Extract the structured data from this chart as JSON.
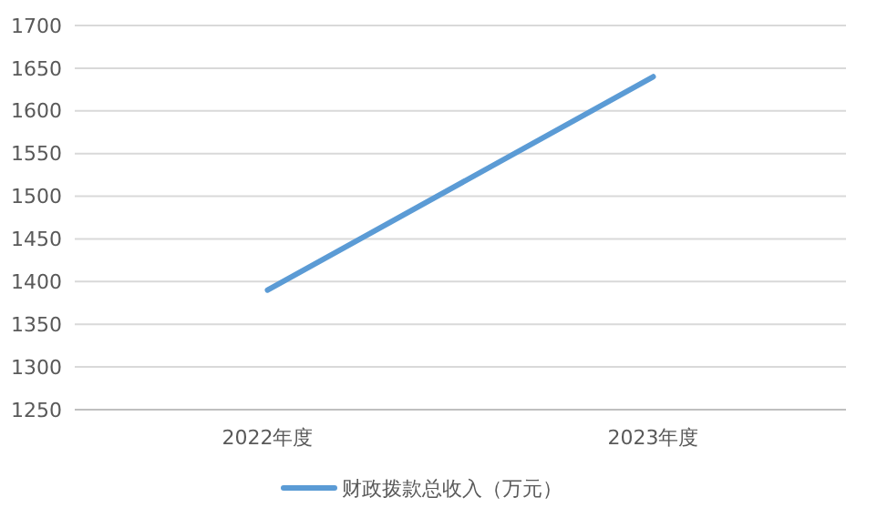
{
  "chart_data": {
    "type": "line",
    "categories": [
      "2022年度",
      "2023年度"
    ],
    "series": [
      {
        "name": "财政拨款总收入（万元）",
        "color": "#5b9bd5",
        "values": [
          1390,
          1640
        ]
      }
    ],
    "ylim": [
      1250,
      1700
    ],
    "yticks": [
      1250,
      1300,
      1350,
      1400,
      1450,
      1500,
      1550,
      1600,
      1650,
      1700
    ],
    "grid": "y",
    "legend": "bottom",
    "marker": "none",
    "line_style": "solid"
  }
}
